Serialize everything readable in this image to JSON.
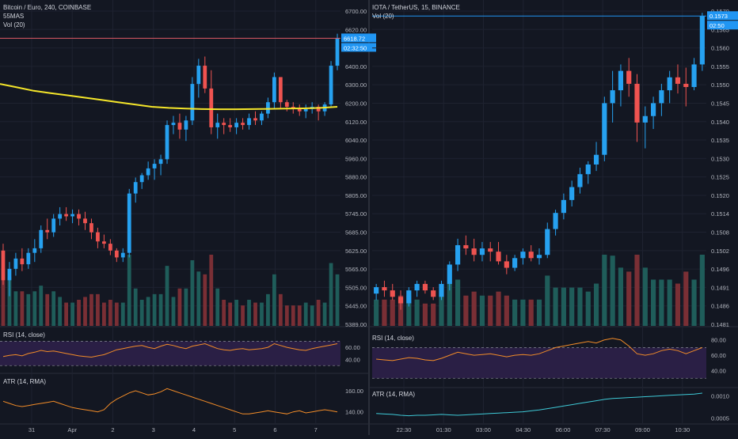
{
  "colors": {
    "background": "#131722",
    "grid": "#1e2230",
    "up": "#26a1f0",
    "down": "#ef5350",
    "vol_up": "#1f5d5a",
    "vol_down": "#7a2f35",
    "ma_line": "#f5e62a",
    "rsi_line": "#f28c28",
    "atr_left_line": "#f28c28",
    "atr_right_line": "#3ec9d6",
    "rsi_band": "#2a1f45",
    "price_tag_left": "#2196f3",
    "price_tag_right": "#2196f3",
    "price_line_left": "#e05a66",
    "price_line_right": "#2196f3"
  },
  "left_chart": {
    "title": "Bitcoin / Euro, 240, COINBASE",
    "indicator_ma": "55MAS",
    "indicator_vol": "Vol (20)",
    "rsi_label": "RSI (14, close)",
    "atr_label": "ATR (14, RMA)",
    "price_ticks": [
      "6700.00",
      "6620.00",
      "6500.00",
      "6400.00",
      "6300.00",
      "6200.00",
      "6120.00",
      "6040.00",
      "5960.00",
      "5880.00",
      "5805.00",
      "5745.00",
      "5685.00",
      "5625.00",
      "5565.00",
      "5505.00",
      "5445.00",
      "5389.00"
    ],
    "last_price": "6618.72",
    "countdown": "02:32:50",
    "rsi_ticks": [
      "60.00",
      "40.00"
    ],
    "atr_ticks": [
      "160.00",
      "140.00"
    ],
    "time_ticks": [
      "31",
      "Apr",
      "2",
      "3",
      "4",
      "5",
      "6",
      "7"
    ]
  },
  "right_chart": {
    "title": "IOTA / TetherUS, 15, BINANCE",
    "indicator_vol": "Vol (20)",
    "rsi_label": "RSI (14, close)",
    "atr_label": "ATR (14, RMA)",
    "price_ticks": [
      "0.1570",
      "0.1565",
      "0.1560",
      "0.1555",
      "0.1550",
      "0.1545",
      "0.1540",
      "0.1535",
      "0.1530",
      "0.1525",
      "0.1520",
      "0.1514",
      "0.1508",
      "0.1502",
      "0.1496",
      "0.1491",
      "0.1486",
      "0.1481"
    ],
    "last_price": "0.1573",
    "countdown": "02:50",
    "rsi_ticks": [
      "80.00",
      "60.00",
      "40.00"
    ],
    "atr_ticks": [
      "0.0010",
      "0.0005"
    ],
    "time_ticks": [
      "22:30",
      "01:30",
      "03:00",
      "04:30",
      "06:00",
      "07:30",
      "09:00",
      "10:30"
    ]
  },
  "chart_data": [
    {
      "type": "candlestick",
      "title": "Bitcoin / Euro, 240, COINBASE",
      "ylim": [
        5360,
        6760
      ],
      "series_ohlc": [
        [
          5690,
          5720,
          5540,
          5560
        ],
        [
          5560,
          5640,
          5490,
          5610
        ],
        [
          5610,
          5680,
          5580,
          5655
        ],
        [
          5655,
          5700,
          5600,
          5630
        ],
        [
          5630,
          5700,
          5610,
          5680
        ],
        [
          5680,
          5740,
          5640,
          5700
        ],
        [
          5700,
          5800,
          5680,
          5780
        ],
        [
          5780,
          5830,
          5740,
          5770
        ],
        [
          5770,
          5850,
          5750,
          5830
        ],
        [
          5830,
          5880,
          5800,
          5850
        ],
        [
          5850,
          5880,
          5820,
          5840
        ],
        [
          5840,
          5870,
          5810,
          5850
        ],
        [
          5850,
          5870,
          5800,
          5830
        ],
        [
          5830,
          5860,
          5780,
          5810
        ],
        [
          5810,
          5830,
          5740,
          5770
        ],
        [
          5770,
          5790,
          5700,
          5730
        ],
        [
          5730,
          5760,
          5700,
          5720
        ],
        [
          5720,
          5740,
          5670,
          5690
        ],
        [
          5690,
          5700,
          5640,
          5660
        ],
        [
          5660,
          5700,
          5640,
          5680
        ],
        [
          5680,
          5960,
          5660,
          5940
        ],
        [
          5940,
          6010,
          5900,
          5990
        ],
        [
          5990,
          6030,
          5960,
          6020
        ],
        [
          6020,
          6080,
          6000,
          6050
        ],
        [
          6050,
          6090,
          6000,
          6070
        ],
        [
          6070,
          6110,
          6020,
          6090
        ],
        [
          6090,
          6260,
          6070,
          6240
        ],
        [
          6240,
          6280,
          6200,
          6250
        ],
        [
          6250,
          6290,
          6180,
          6220
        ],
        [
          6220,
          6280,
          6170,
          6260
        ],
        [
          6260,
          6450,
          6240,
          6420
        ],
        [
          6420,
          6530,
          6360,
          6500
        ],
        [
          6500,
          6540,
          6380,
          6400
        ],
        [
          6400,
          6480,
          6200,
          6230
        ],
        [
          6230,
          6290,
          6180,
          6250
        ],
        [
          6250,
          6270,
          6200,
          6240
        ],
        [
          6240,
          6270,
          6210,
          6230
        ],
        [
          6230,
          6270,
          6200,
          6250
        ],
        [
          6250,
          6270,
          6220,
          6240
        ],
        [
          6240,
          6290,
          6220,
          6270
        ],
        [
          6270,
          6300,
          6240,
          6260
        ],
        [
          6260,
          6300,
          6240,
          6290
        ],
        [
          6290,
          6360,
          6270,
          6340
        ],
        [
          6340,
          6470,
          6310,
          6450
        ],
        [
          6450,
          6400,
          6310,
          6340
        ],
        [
          6340,
          6350,
          6300,
          6320
        ],
        [
          6320,
          6340,
          6290,
          6310
        ],
        [
          6310,
          6330,
          6280,
          6300
        ],
        [
          6300,
          6330,
          6270,
          6310
        ],
        [
          6310,
          6340,
          6290,
          6320
        ],
        [
          6320,
          6330,
          6260,
          6300
        ],
        [
          6300,
          6340,
          6280,
          6330
        ],
        [
          6330,
          6520,
          6320,
          6500
        ],
        [
          6500,
          6640,
          6480,
          6620
        ]
      ],
      "ma_values": [
        6420,
        6405,
        6390,
        6380,
        6370,
        6360,
        6350,
        6340,
        6330,
        6320,
        6315,
        6312,
        6310,
        6309,
        6309,
        6310,
        6311,
        6312,
        6313,
        6315,
        6320
      ],
      "rsi_values": [
        45,
        47,
        48,
        46,
        50,
        52,
        55,
        53,
        54,
        52,
        50,
        48,
        46,
        45,
        44,
        46,
        48,
        52,
        56,
        58,
        60,
        62,
        63,
        60,
        58,
        62,
        65,
        63,
        60,
        58,
        62,
        64,
        66,
        62,
        58,
        56,
        55,
        57,
        58,
        56,
        57,
        58,
        60,
        66,
        63,
        60,
        58,
        56,
        55,
        58,
        60,
        62,
        64,
        66
      ],
      "atr_values": [
        150,
        148,
        146,
        145,
        146,
        147,
        148,
        149,
        150,
        148,
        146,
        144,
        143,
        142,
        141,
        140,
        142,
        148,
        152,
        155,
        158,
        160,
        158,
        156,
        157,
        159,
        162,
        160,
        158,
        156,
        154,
        152,
        150,
        148,
        146,
        144,
        142,
        140,
        138,
        138,
        139,
        140,
        141,
        140,
        139,
        138,
        140,
        141,
        139,
        140,
        141,
        142,
        141,
        140
      ]
    },
    {
      "type": "candlestick",
      "title": "IOTA / TetherUS, 15, BINANCE",
      "ylim": [
        0.1477,
        0.1576
      ],
      "series_ohlc": [
        [
          0.1487,
          0.149,
          0.1485,
          0.1489
        ],
        [
          0.1489,
          0.1491,
          0.1486,
          0.1488
        ],
        [
          0.1488,
          0.149,
          0.1485,
          0.1486
        ],
        [
          0.1486,
          0.1488,
          0.1482,
          0.1484
        ],
        [
          0.1484,
          0.1489,
          0.1483,
          0.1488
        ],
        [
          0.1488,
          0.1491,
          0.1486,
          0.149
        ],
        [
          0.149,
          0.1491,
          0.1487,
          0.1488
        ],
        [
          0.1488,
          0.1489,
          0.1485,
          0.1486
        ],
        [
          0.1486,
          0.1491,
          0.1485,
          0.149
        ],
        [
          0.149,
          0.1497,
          0.1488,
          0.1496
        ],
        [
          0.1496,
          0.1504,
          0.1494,
          0.1502
        ],
        [
          0.1502,
          0.1505,
          0.1499,
          0.1501
        ],
        [
          0.1501,
          0.1504,
          0.1497,
          0.1499
        ],
        [
          0.1499,
          0.1503,
          0.1497,
          0.1501
        ],
        [
          0.1501,
          0.1503,
          0.1497,
          0.15
        ],
        [
          0.15,
          0.1503,
          0.1496,
          0.1497
        ],
        [
          0.1497,
          0.1499,
          0.1493,
          0.1495
        ],
        [
          0.1495,
          0.1499,
          0.1494,
          0.1498
        ],
        [
          0.1498,
          0.1501,
          0.1496,
          0.15
        ],
        [
          0.15,
          0.1502,
          0.1497,
          0.1498
        ],
        [
          0.1498,
          0.1501,
          0.1496,
          0.1499
        ],
        [
          0.1499,
          0.1509,
          0.1498,
          0.1507
        ],
        [
          0.1507,
          0.1513,
          0.1505,
          0.1512
        ],
        [
          0.1512,
          0.1518,
          0.151,
          0.1516
        ],
        [
          0.1516,
          0.1522,
          0.1514,
          0.152
        ],
        [
          0.152,
          0.1526,
          0.1518,
          0.1524
        ],
        [
          0.1524,
          0.1528,
          0.1521,
          0.1527
        ],
        [
          0.1527,
          0.1534,
          0.1525,
          0.153
        ],
        [
          0.153,
          0.1548,
          0.1528,
          0.1546
        ],
        [
          0.1546,
          0.1556,
          0.154,
          0.155
        ],
        [
          0.155,
          0.1558,
          0.1545,
          0.1556
        ],
        [
          0.1556,
          0.156,
          0.1548,
          0.1552
        ],
        [
          0.1552,
          0.1555,
          0.1534,
          0.154
        ],
        [
          0.154,
          0.1545,
          0.1532,
          0.1542
        ],
        [
          0.1542,
          0.1548,
          0.1538,
          0.1546
        ],
        [
          0.1546,
          0.1552,
          0.1542,
          0.155
        ],
        [
          0.155,
          0.1556,
          0.1546,
          0.1554
        ],
        [
          0.1554,
          0.1558,
          0.1549,
          0.1552
        ],
        [
          0.1552,
          0.1557,
          0.1545,
          0.1551
        ],
        [
          0.1551,
          0.156,
          0.155,
          0.1558
        ],
        [
          0.1558,
          0.1574,
          0.1556,
          0.1573
        ]
      ],
      "rsi_values": [
        55,
        54,
        53,
        55,
        57,
        56,
        54,
        53,
        56,
        60,
        64,
        62,
        60,
        61,
        62,
        60,
        58,
        60,
        61,
        60,
        62,
        66,
        70,
        72,
        74,
        76,
        78,
        76,
        80,
        82,
        80,
        72,
        62,
        60,
        62,
        66,
        68,
        66,
        62,
        66,
        70
      ],
      "atr_values": [
        0.0006,
        0.00059,
        0.00058,
        0.00056,
        0.00055,
        0.00056,
        0.00056,
        0.00057,
        0.00058,
        0.00057,
        0.00056,
        0.00057,
        0.00058,
        0.00059,
        0.0006,
        0.00061,
        0.00062,
        0.00063,
        0.00064,
        0.00066,
        0.00068,
        0.00071,
        0.00074,
        0.00077,
        0.0008,
        0.00083,
        0.00086,
        0.00089,
        0.00092,
        0.00094,
        0.00095,
        0.00096,
        0.00097,
        0.00098,
        0.00099,
        0.001,
        0.00101,
        0.00102,
        0.00103,
        0.00104,
        0.00106
      ]
    }
  ]
}
